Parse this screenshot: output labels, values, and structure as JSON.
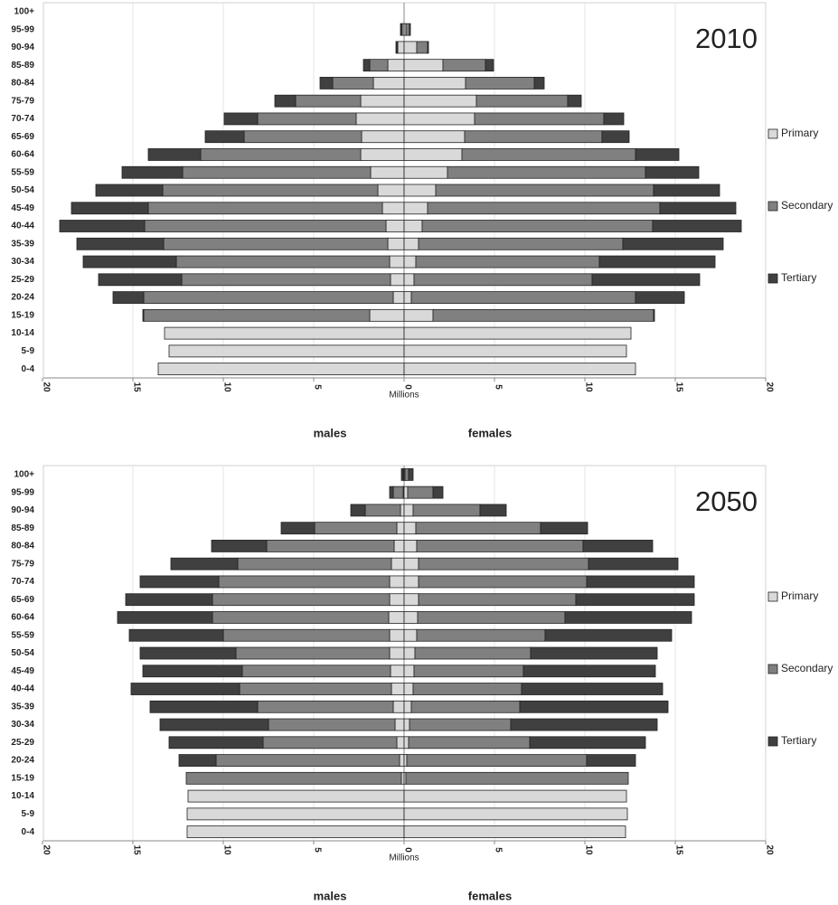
{
  "chart_data": [
    {
      "type": "pyramid",
      "title": "2010",
      "x_label": "Millions",
      "side_labels": [
        "males",
        "females"
      ],
      "categories": [
        "0-4",
        "5-9",
        "10-14",
        "15-19",
        "20-24",
        "25-29",
        "30-34",
        "35-39",
        "40-44",
        "45-49",
        "50-54",
        "55-59",
        "60-64",
        "65-69",
        "70-74",
        "75-79",
        "80-84",
        "85-89",
        "90-94",
        "95-99",
        "100+"
      ],
      "xlim": [
        0,
        20
      ],
      "xticks": [
        0,
        5,
        10,
        15,
        20
      ],
      "grid": true,
      "legend": "right",
      "series": [
        {
          "name": "Primary",
          "color": "#d9d9d9",
          "left_values": [
            13.6,
            13.0,
            13.25,
            1.9,
            0.6,
            0.75,
            0.8,
            0.9,
            1.0,
            1.2,
            1.45,
            1.85,
            2.4,
            2.35,
            2.65,
            2.4,
            1.7,
            0.9,
            0.35,
            0.1,
            0
          ],
          "right_values": [
            12.8,
            12.3,
            12.55,
            1.6,
            0.4,
            0.55,
            0.65,
            0.8,
            1.0,
            1.3,
            1.75,
            2.4,
            3.2,
            3.35,
            3.9,
            4.0,
            3.4,
            2.15,
            0.7,
            0.1,
            0
          ]
        },
        {
          "name": "Secondary",
          "color": "#808080",
          "left_values": [
            0,
            0,
            0,
            12.5,
            13.8,
            11.55,
            11.8,
            12.4,
            13.35,
            12.95,
            11.9,
            10.4,
            8.85,
            6.5,
            5.45,
            3.6,
            2.25,
            1.0,
            0.05,
            0.05,
            0
          ],
          "right_values": [
            0,
            0,
            0,
            12.2,
            12.4,
            9.85,
            10.15,
            11.3,
            12.75,
            12.85,
            12.05,
            10.95,
            9.6,
            7.6,
            7.15,
            5.05,
            3.8,
            2.35,
            0.6,
            0.2,
            0
          ]
        },
        {
          "name": "Tertiary",
          "color": "#404040",
          "left_values": [
            0,
            0,
            0,
            0.05,
            1.7,
            4.6,
            5.15,
            4.8,
            4.7,
            4.25,
            3.7,
            3.35,
            2.9,
            2.15,
            1.85,
            1.15,
            0.7,
            0.35,
            0.05,
            0.05,
            0
          ],
          "right_values": [
            0,
            0,
            0,
            0.05,
            2.7,
            5.95,
            6.4,
            5.55,
            4.9,
            4.2,
            3.65,
            2.95,
            2.4,
            1.5,
            1.1,
            0.75,
            0.55,
            0.45,
            0.05,
            0.05,
            0
          ]
        }
      ]
    },
    {
      "type": "pyramid",
      "title": "2050",
      "x_label": "Millions",
      "side_labels": [
        "males",
        "females"
      ],
      "categories": [
        "0-4",
        "5-9",
        "10-14",
        "15-19",
        "20-24",
        "25-29",
        "30-34",
        "35-39",
        "40-44",
        "45-49",
        "50-54",
        "55-59",
        "60-64",
        "65-69",
        "70-74",
        "75-79",
        "80-84",
        "85-89",
        "90-94",
        "95-99",
        "100+"
      ],
      "xlim": [
        0,
        20
      ],
      "xticks": [
        0,
        5,
        10,
        15,
        20
      ],
      "grid": true,
      "legend": "right",
      "series": [
        {
          "name": "Primary",
          "color": "#d9d9d9",
          "left_values": [
            12.0,
            12.0,
            11.95,
            0.15,
            0.25,
            0.4,
            0.5,
            0.6,
            0.7,
            0.75,
            0.8,
            0.8,
            0.85,
            0.8,
            0.8,
            0.7,
            0.55,
            0.4,
            0.2,
            0.05,
            0
          ],
          "right_values": [
            12.25,
            12.35,
            12.3,
            0.1,
            0.15,
            0.25,
            0.3,
            0.4,
            0.5,
            0.55,
            0.6,
            0.7,
            0.75,
            0.8,
            0.8,
            0.8,
            0.7,
            0.65,
            0.5,
            0.2,
            0.05
          ]
        },
        {
          "name": "Secondary",
          "color": "#808080",
          "left_values": [
            0,
            0,
            0,
            11.9,
            10.15,
            7.4,
            7.0,
            7.5,
            8.4,
            8.2,
            8.5,
            9.2,
            9.75,
            9.8,
            9.45,
            8.5,
            7.05,
            4.55,
            1.95,
            0.55,
            0.05
          ],
          "right_values": [
            0,
            0,
            0,
            12.3,
            9.95,
            6.7,
            5.6,
            6.0,
            6.0,
            6.05,
            6.4,
            7.1,
            8.15,
            8.7,
            9.3,
            9.4,
            9.2,
            6.9,
            3.7,
            1.4,
            0.2
          ]
        },
        {
          "name": "Tertiary",
          "color": "#404040",
          "left_values": [
            0,
            0,
            0,
            0,
            2.05,
            5.2,
            6.0,
            5.95,
            6.0,
            5.5,
            5.3,
            5.2,
            5.25,
            4.8,
            4.35,
            3.7,
            3.05,
            1.85,
            0.8,
            0.2,
            0.1
          ],
          "right_values": [
            0,
            0,
            0,
            0,
            2.7,
            6.4,
            8.1,
            8.2,
            7.8,
            7.3,
            7.0,
            7.0,
            7.0,
            6.55,
            5.95,
            4.95,
            3.85,
            2.6,
            1.45,
            0.55,
            0.25
          ]
        }
      ]
    }
  ]
}
